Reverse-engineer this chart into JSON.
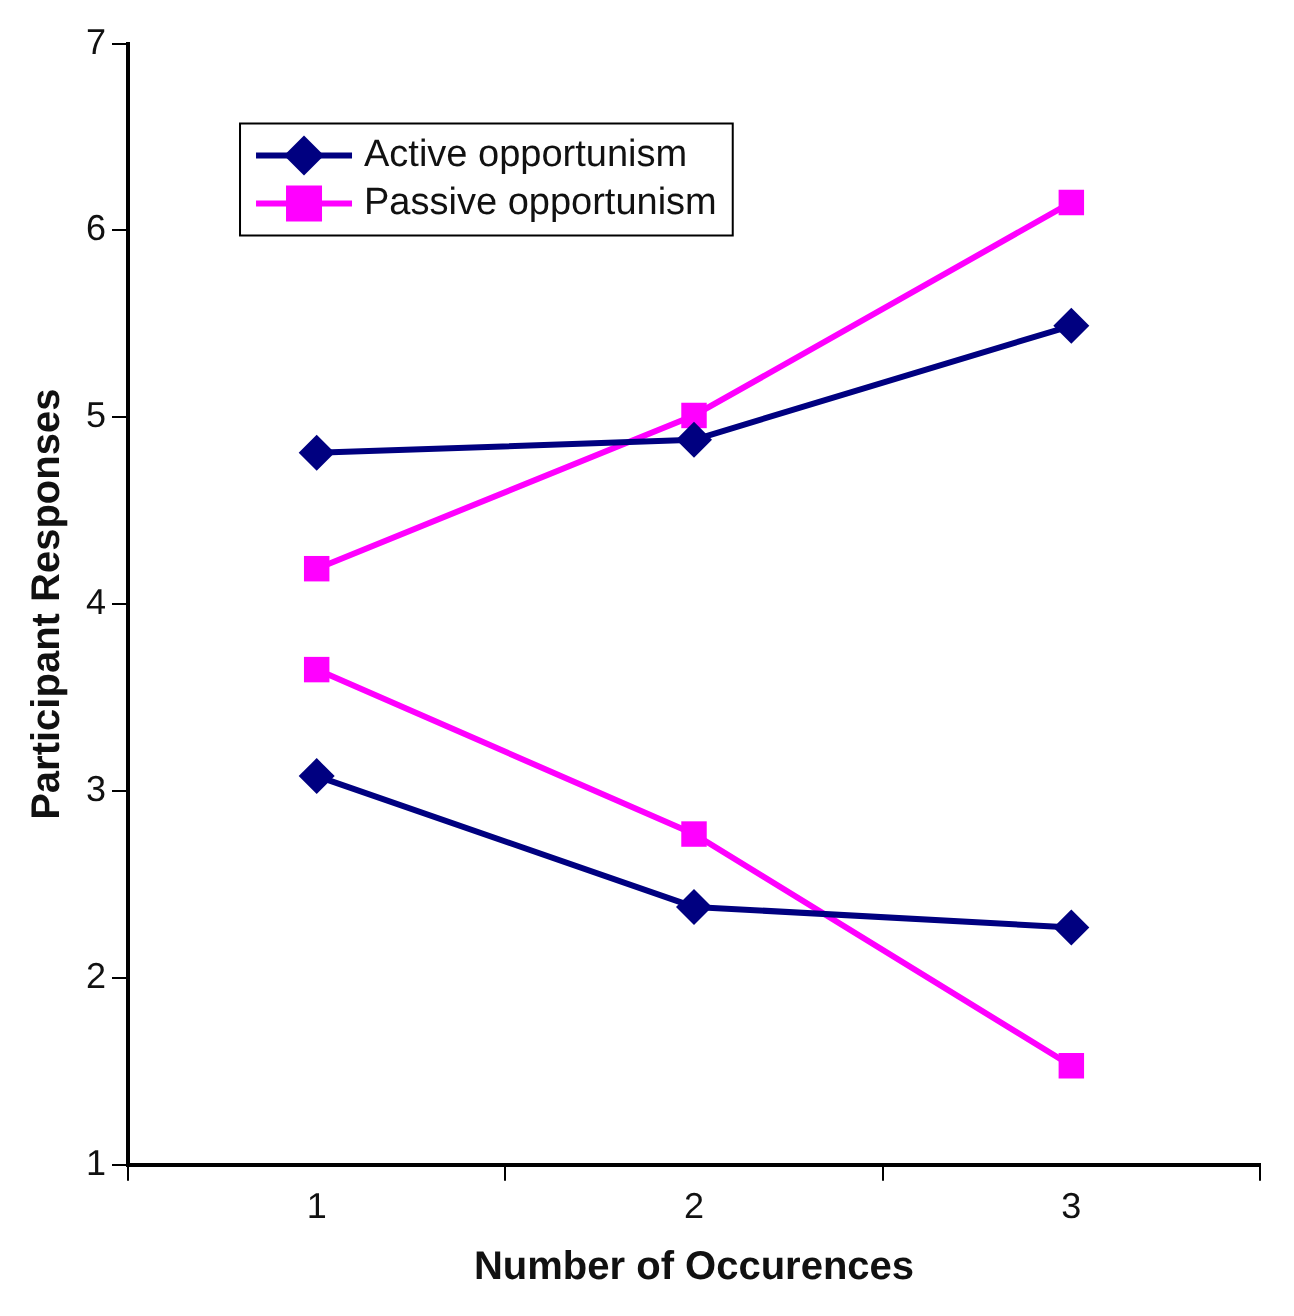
{
  "chart_data": {
    "type": "line",
    "xlabel": "Number of Occurences",
    "ylabel": "Participant Responses",
    "categories": [
      "1",
      "2",
      "3"
    ],
    "series": [
      {
        "name": "Active opportunism",
        "color": "#000080",
        "marker": "diamond",
        "values": [
          4.81,
          4.88,
          5.49
        ]
      },
      {
        "name": "Passive opportunism",
        "color": "#ff00ff",
        "marker": "square",
        "values": [
          4.19,
          5.01,
          6.15
        ]
      },
      {
        "color": "#000080",
        "marker": "diamond",
        "values": [
          3.08,
          2.38,
          2.27
        ]
      },
      {
        "color": "#ff00ff",
        "marker": "square",
        "values": [
          3.65,
          2.77,
          1.53
        ]
      }
    ],
    "ylim": [
      1,
      7
    ],
    "yticks": [
      1,
      2,
      3,
      4,
      5,
      6,
      7
    ],
    "grid": false,
    "legend": "top left",
    "line_style": "solid"
  }
}
